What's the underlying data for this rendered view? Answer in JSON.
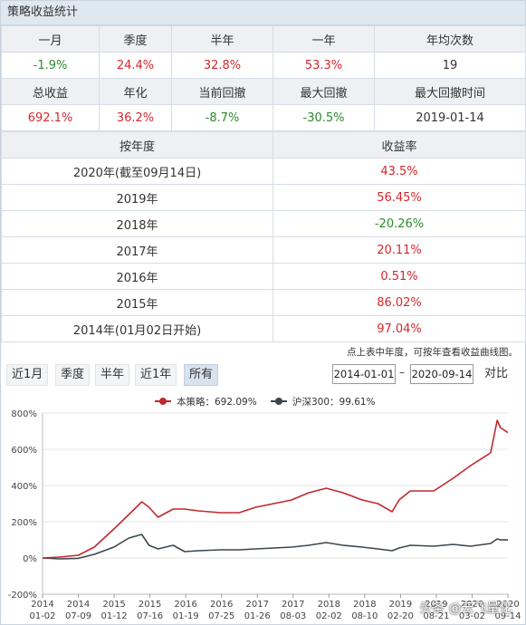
{
  "panel": {
    "title": "策略收益统计"
  },
  "stats_row1": {
    "headers": [
      "一月",
      "季度",
      "半年",
      "一年",
      "年均次数"
    ],
    "values": [
      "-1.9%",
      "24.4%",
      "32.8%",
      "53.3%",
      "19"
    ],
    "colors": [
      "green",
      "red",
      "red",
      "red",
      "dark"
    ]
  },
  "stats_row2": {
    "headers": [
      "总收益",
      "年化",
      "当前回撤",
      "最大回撤",
      "最大回撤时间"
    ],
    "values": [
      "692.1%",
      "36.2%",
      "-8.7%",
      "-30.5%",
      "2019-01-14"
    ],
    "colors": [
      "red",
      "red",
      "green",
      "green",
      "dark"
    ]
  },
  "yearly": {
    "header_year": "按年度",
    "header_return": "收益率",
    "rows": [
      {
        "year": "2020年(截至09月14日)",
        "ret": "43.5%",
        "color": "red"
      },
      {
        "year": "2019年",
        "ret": "56.45%",
        "color": "red"
      },
      {
        "year": "2018年",
        "ret": "-20.26%",
        "color": "green"
      },
      {
        "year": "2017年",
        "ret": "20.11%",
        "color": "red"
      },
      {
        "year": "2016年",
        "ret": "0.51%",
        "color": "red"
      },
      {
        "year": "2015年",
        "ret": "86.02%",
        "color": "red"
      },
      {
        "year": "2014年(01月02日开始)",
        "ret": "97.04%",
        "color": "red"
      }
    ]
  },
  "note": "点上表中年度，可按年查看收益曲线图。",
  "controls": {
    "ranges": [
      "近1月",
      "季度",
      "半年",
      "近1年",
      "所有"
    ],
    "active_range": "所有",
    "start_date": "2014-01-01",
    "dash": "–",
    "end_date": "2020-09-14",
    "compare_label": "对比"
  },
  "watermark": "头条 @云飞量化",
  "chart_data": {
    "type": "line",
    "title": "",
    "xlabel": "",
    "ylabel": "",
    "ylim": [
      -200,
      800
    ],
    "yticks": [
      "800%",
      "600%",
      "400%",
      "200%",
      "0%",
      "-200%"
    ],
    "grid": true,
    "legend_position": "top-center",
    "x_ticks": [
      {
        "year": "2014",
        "date": "01-02"
      },
      {
        "year": "2014",
        "date": "07-09"
      },
      {
        "year": "2015",
        "date": "01-12"
      },
      {
        "year": "2015",
        "date": "07-16"
      },
      {
        "year": "2016",
        "date": "01-19"
      },
      {
        "year": "2016",
        "date": "07-25"
      },
      {
        "year": "2017",
        "date": "01-26"
      },
      {
        "year": "2017",
        "date": "08-03"
      },
      {
        "year": "2018",
        "date": "02-02"
      },
      {
        "year": "2018",
        "date": "08-10"
      },
      {
        "year": "2019",
        "date": "02-20"
      },
      {
        "year": "2019",
        "date": "08-21"
      },
      {
        "year": "2020",
        "date": "03-02"
      },
      {
        "year": "2020",
        "date": "09-14"
      }
    ],
    "series": [
      {
        "name": "本策略：692.09%",
        "color": "#c0282d",
        "x": [
          "2014-01-02",
          "2014-04-01",
          "2014-07-09",
          "2014-10-01",
          "2015-01-12",
          "2015-04-01",
          "2015-06-08",
          "2015-07-16",
          "2015-09-01",
          "2015-11-20",
          "2016-01-19",
          "2016-04-01",
          "2016-07-25",
          "2016-11-01",
          "2017-01-26",
          "2017-05-01",
          "2017-08-03",
          "2017-11-01",
          "2018-02-02",
          "2018-05-01",
          "2018-08-10",
          "2018-11-01",
          "2019-01-14",
          "2019-02-20",
          "2019-04-20",
          "2019-08-21",
          "2019-12-01",
          "2020-03-02",
          "2020-06-15",
          "2020-07-20",
          "2020-08-05",
          "2020-09-14"
        ],
        "values": [
          0,
          5,
          15,
          60,
          160,
          240,
          310,
          280,
          225,
          270,
          270,
          260,
          250,
          250,
          280,
          300,
          320,
          360,
          385,
          360,
          320,
          300,
          255,
          320,
          370,
          370,
          440,
          510,
          580,
          760,
          720,
          692
        ]
      },
      {
        "name": "沪深300：99.61%",
        "color": "#3c474f",
        "x": [
          "2014-01-02",
          "2014-04-01",
          "2014-07-09",
          "2014-10-01",
          "2015-01-12",
          "2015-04-01",
          "2015-06-08",
          "2015-07-16",
          "2015-09-01",
          "2015-11-20",
          "2016-01-19",
          "2016-04-01",
          "2016-07-25",
          "2016-11-01",
          "2017-01-26",
          "2017-05-01",
          "2017-08-03",
          "2017-11-01",
          "2018-02-02",
          "2018-05-01",
          "2018-08-10",
          "2018-11-01",
          "2019-01-14",
          "2019-02-20",
          "2019-04-20",
          "2019-08-21",
          "2019-12-01",
          "2020-03-02",
          "2020-06-15",
          "2020-07-20",
          "2020-08-05",
          "2020-09-14"
        ],
        "values": [
          0,
          -5,
          -2,
          20,
          60,
          110,
          130,
          70,
          50,
          70,
          35,
          40,
          45,
          45,
          50,
          55,
          60,
          70,
          85,
          70,
          60,
          50,
          40,
          55,
          70,
          65,
          75,
          65,
          80,
          105,
          100,
          99.6
        ]
      }
    ]
  }
}
